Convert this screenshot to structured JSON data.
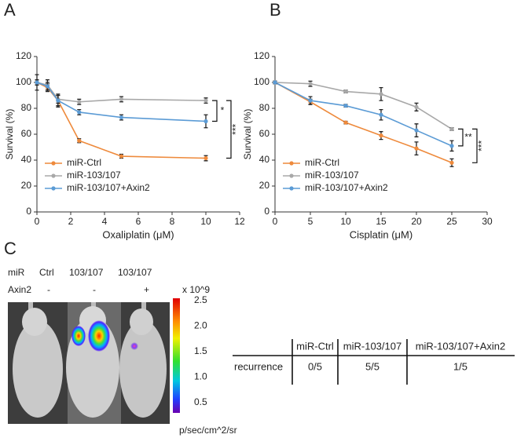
{
  "chart_data": [
    {
      "type": "line",
      "panel": "A",
      "xlabel": "Oxaliplatin (μM)",
      "ylabel": "Survival (%)",
      "x": [
        0,
        0.625,
        1.25,
        2.5,
        5,
        10
      ],
      "xlim": [
        0,
        12
      ],
      "xticks": [
        0,
        2,
        4,
        6,
        8,
        10,
        12
      ],
      "ylim": [
        0,
        120
      ],
      "yticks": [
        0,
        20,
        40,
        60,
        80,
        100,
        120
      ],
      "legend": "lower left",
      "series": [
        {
          "name": "miR-Ctrl",
          "color": "#ee8a3c",
          "values": [
            100,
            96,
            86,
            55,
            43,
            41.5
          ],
          "errors": [
            2,
            3,
            5,
            1.5,
            1.5,
            2
          ]
        },
        {
          "name": "miR-103/107",
          "color": "#a8a8a8",
          "values": [
            100,
            98,
            87,
            85,
            87,
            86
          ],
          "errors": [
            6,
            4,
            3,
            2,
            2,
            2
          ]
        },
        {
          "name": "miR-103/107+Axin2",
          "color": "#5b9bd5",
          "values": [
            100,
            97,
            86,
            77,
            73,
            70
          ],
          "errors": [
            2,
            3,
            4,
            2,
            2,
            5
          ]
        }
      ],
      "annotations": [
        {
          "text": "*"
        },
        {
          "text": "***"
        }
      ]
    },
    {
      "type": "line",
      "panel": "B",
      "xlabel": "Cisplatin (μM)",
      "ylabel": "Survival (%)",
      "x": [
        0,
        5,
        10,
        15,
        20,
        25
      ],
      "xlim": [
        0,
        30
      ],
      "xticks": [
        0,
        5,
        10,
        15,
        20,
        25,
        30
      ],
      "ylim": [
        0,
        120
      ],
      "yticks": [
        0,
        20,
        40,
        60,
        80,
        100,
        120
      ],
      "legend": "lower left",
      "series": [
        {
          "name": "miR-Ctrl",
          "color": "#ee8a3c",
          "values": [
            100,
            85,
            69,
            59,
            49,
            38
          ],
          "errors": [
            1,
            2,
            1,
            3,
            5,
            3
          ]
        },
        {
          "name": "miR-103/107",
          "color": "#a8a8a8",
          "values": [
            100,
            99,
            93,
            91,
            81,
            64
          ],
          "errors": [
            1,
            2,
            1,
            5,
            3,
            1
          ]
        },
        {
          "name": "miR-103/107+Axin2",
          "color": "#5b9bd5",
          "values": [
            100,
            86,
            82,
            75,
            63,
            51
          ],
          "errors": [
            1,
            3,
            1,
            4,
            5,
            4
          ]
        }
      ],
      "annotations": [
        {
          "text": "**"
        },
        {
          "text": "***"
        }
      ]
    }
  ],
  "panel_c": {
    "label": "C",
    "row1": [
      "miR",
      "Ctrl",
      "103/107",
      "103/107"
    ],
    "row2": [
      "Axin2",
      "-",
      "-",
      "+"
    ],
    "colorbar": {
      "title": "x 10^9",
      "ticks": [
        "2.5",
        "2.0",
        "1.5",
        "1.0",
        "0.5"
      ],
      "unit": "p/sec/cm^2/sr"
    }
  },
  "table": {
    "columns": [
      "miR-Ctrl",
      "miR-103/107",
      "miR-103/107+Axin2"
    ],
    "row_label": "recurrence",
    "cells": [
      "0/5",
      "5/5",
      "1/5"
    ]
  }
}
